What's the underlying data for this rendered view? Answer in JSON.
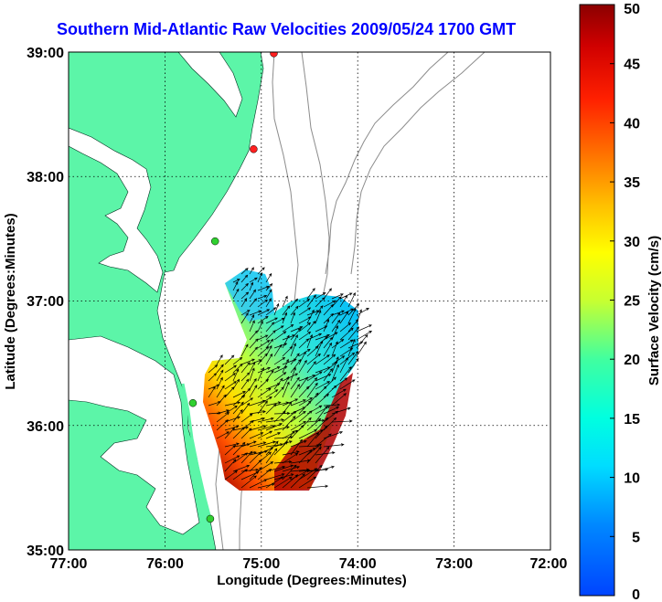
{
  "title": "Southern Mid-Atlantic Raw Velocities 2009/05/24 1700 GMT",
  "xlabel": "Longitude (Degrees:Minutes)",
  "ylabel": "Latitude (Degrees:Minutes)",
  "colorbar_label": "Surface Velocity (cm/s)",
  "x_ticks": [
    "77:00",
    "76:00",
    "75:00",
    "74:00",
    "73:00",
    "72:00"
  ],
  "y_ticks": [
    "39:00",
    "38:00",
    "37:00",
    "36:00",
    "35:00"
  ],
  "colorbar_ticks": [
    "0",
    "5",
    "10",
    "15",
    "20",
    "25",
    "30",
    "35",
    "40",
    "45",
    "50"
  ],
  "colors": {
    "land": "#5cf5a8",
    "water": "#ffffff",
    "bathymetry": "#8c8c8c",
    "grid": "#000000",
    "title": "#0000ff",
    "station_red": "#ff2020",
    "station_green": "#30d030"
  },
  "chart_data": {
    "type": "heatmap",
    "xlim": [
      -77,
      -72
    ],
    "ylim": [
      35,
      39
    ],
    "clim": [
      0,
      50
    ],
    "colormap": "jet",
    "stations": [
      {
        "lon": -74.87,
        "lat": 38.99,
        "color": "red"
      },
      {
        "lon": -75.08,
        "lat": 38.22,
        "color": "red"
      },
      {
        "lon": -75.48,
        "lat": 37.48,
        "color": "green"
      },
      {
        "lon": -75.71,
        "lat": 36.18,
        "color": "green"
      },
      {
        "lon": -75.53,
        "lat": 35.25,
        "color": "green"
      }
    ]
  }
}
